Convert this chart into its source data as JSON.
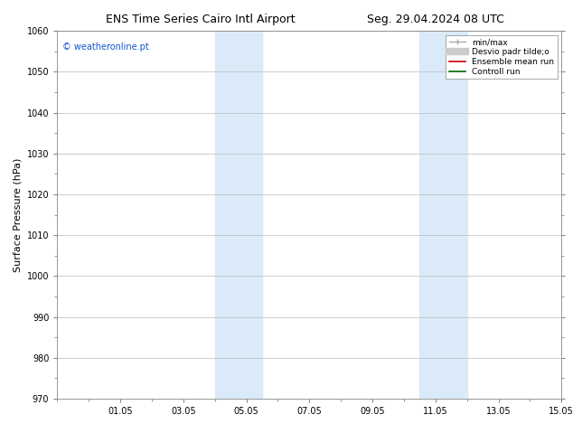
{
  "title_left": "ENS Time Series Cairo Intl Airport",
  "title_right": "Seg. 29.04.2024 08 UTC",
  "ylabel": "Surface Pressure (hPa)",
  "ylim": [
    970,
    1060
  ],
  "yticks": [
    970,
    980,
    990,
    1000,
    1010,
    1020,
    1030,
    1040,
    1050,
    1060
  ],
  "xlim": [
    0,
    16
  ],
  "xtick_labels": [
    "01.05",
    "03.05",
    "05.05",
    "07.05",
    "09.05",
    "11.05",
    "13.05",
    "15.05"
  ],
  "xtick_positions": [
    2,
    4,
    6,
    8,
    10,
    12,
    14,
    16
  ],
  "shaded_bands": [
    {
      "x_start": 5.0,
      "x_end": 6.5
    },
    {
      "x_start": 11.5,
      "x_end": 13.0
    }
  ],
  "shaded_color": "#daeaf8",
  "watermark_text": "© weatheronline.pt",
  "watermark_color": "#1155cc",
  "bg_color": "#ffffff",
  "grid_color": "#bbbbbb",
  "title_fontsize": 9,
  "ylabel_fontsize": 8,
  "tick_fontsize": 7,
  "watermark_fontsize": 7,
  "legend_fontsize": 6.5
}
